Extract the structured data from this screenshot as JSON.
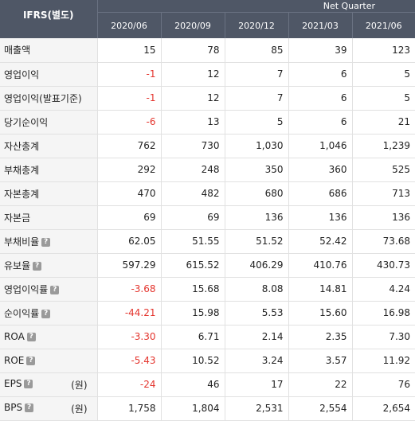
{
  "header": {
    "corner_label": "IFRS(별도)",
    "group_label": "Net Quarter",
    "periods": [
      "2020/06",
      "2020/09",
      "2020/12",
      "2021/03",
      "2021/06"
    ]
  },
  "help_glyph": "?",
  "rows": [
    {
      "label": "매출액",
      "values": [
        "15",
        "78",
        "85",
        "39",
        "123"
      ]
    },
    {
      "label": "영업이익",
      "values": [
        "-1",
        "12",
        "7",
        "6",
        "5"
      ]
    },
    {
      "label": "영업이익(발표기준)",
      "values": [
        "-1",
        "12",
        "7",
        "6",
        "5"
      ]
    },
    {
      "label": "당기순이익",
      "values": [
        "-6",
        "13",
        "5",
        "6",
        "21"
      ]
    },
    {
      "label": "자산총계",
      "values": [
        "762",
        "730",
        "1,030",
        "1,046",
        "1,239"
      ]
    },
    {
      "label": "부채총계",
      "values": [
        "292",
        "248",
        "350",
        "360",
        "525"
      ]
    },
    {
      "label": "자본총계",
      "values": [
        "470",
        "482",
        "680",
        "686",
        "713"
      ]
    },
    {
      "label": "자본금",
      "values": [
        "69",
        "69",
        "136",
        "136",
        "136"
      ]
    },
    {
      "label": "부채비율",
      "help": true,
      "values": [
        "62.05",
        "51.55",
        "51.52",
        "52.42",
        "73.68"
      ]
    },
    {
      "label": "유보율",
      "help": true,
      "values": [
        "597.29",
        "615.52",
        "406.29",
        "410.76",
        "430.73"
      ]
    },
    {
      "label": "영업이익률",
      "help": true,
      "values": [
        "-3.68",
        "15.68",
        "8.08",
        "14.81",
        "4.24"
      ]
    },
    {
      "label": "순이익률",
      "help": true,
      "values": [
        "-44.21",
        "15.98",
        "5.53",
        "15.60",
        "16.98"
      ]
    },
    {
      "label": "ROA",
      "help": true,
      "values": [
        "-3.30",
        "6.71",
        "2.14",
        "2.35",
        "7.30"
      ]
    },
    {
      "label": "ROE",
      "help": true,
      "values": [
        "-5.43",
        "10.52",
        "3.24",
        "3.57",
        "11.92"
      ]
    },
    {
      "label": "EPS",
      "help": true,
      "unit": "(원)",
      "values": [
        "-24",
        "46",
        "17",
        "22",
        "76"
      ]
    },
    {
      "label": "BPS",
      "help": true,
      "unit": "(원)",
      "values": [
        "1,758",
        "1,804",
        "2,531",
        "2,554",
        "2,654"
      ]
    }
  ],
  "colors": {
    "header_bg": "#4f5766",
    "negative": "#e4342d",
    "label_bg": "#f5f5f5"
  }
}
